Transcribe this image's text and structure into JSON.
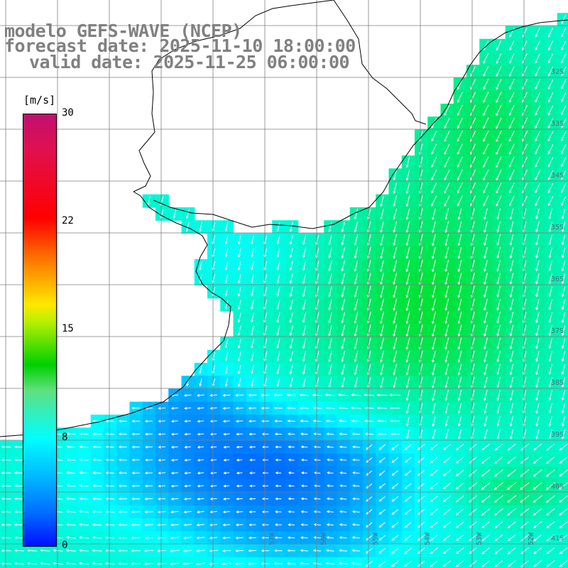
{
  "title": {
    "line1": "modelo GEFS-WAVE (NCEP)",
    "line2": "forecast date: 2025-11-10 18:00:00",
    "line3": "valid date: 2025-11-25 06:00:00"
  },
  "colorbar": {
    "unit": "[m/s]",
    "ticks": [
      "30",
      "22",
      "15",
      "8",
      "0"
    ],
    "colors": [
      "#c01070",
      "#ff0000",
      "#ffe800",
      "#00d000",
      "#00ffff",
      "#0070ff",
      "#0010ff"
    ]
  },
  "lat_labels": [
    "32S",
    "33S",
    "34S",
    "35S",
    "36S",
    "37S",
    "38S",
    "39S",
    "40S",
    "41S"
  ],
  "lon_labels": [
    "57W",
    "56W",
    "55W",
    "54W",
    "53W",
    "52W",
    "51W"
  ],
  "colors": {
    "land": "#ffffff",
    "grid": "#7f7f7f",
    "coast": "#000000",
    "arrow": "#ffffff",
    "title_text": "#808080"
  }
}
